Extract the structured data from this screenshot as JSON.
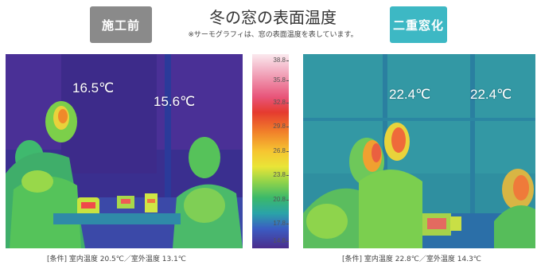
{
  "header": {
    "before_label": "施工前",
    "after_label": "二重窓化",
    "title": "冬の窓の表面温度",
    "subtitle": "※サーモグラフィは、窓の表面温度を表しています。"
  },
  "left_image": {
    "temps": [
      "16.5℃",
      "15.6℃"
    ],
    "condition": "[条件] 室内温度 20.5℃／室外温度 13.1℃"
  },
  "right_image": {
    "temps": [
      "22.4℃",
      "22.4℃"
    ],
    "condition": "[条件] 室内温度 22.8℃／室外温度 14.3℃"
  },
  "scale": {
    "ticks": [
      "38.8",
      "35.8",
      "32.8",
      "29.8",
      "26.8",
      "23.8",
      "20.8",
      "17.8",
      "14.8"
    ]
  },
  "colors": {
    "before_badge": "#8a8a8a",
    "after_badge": "#3db8c4"
  }
}
